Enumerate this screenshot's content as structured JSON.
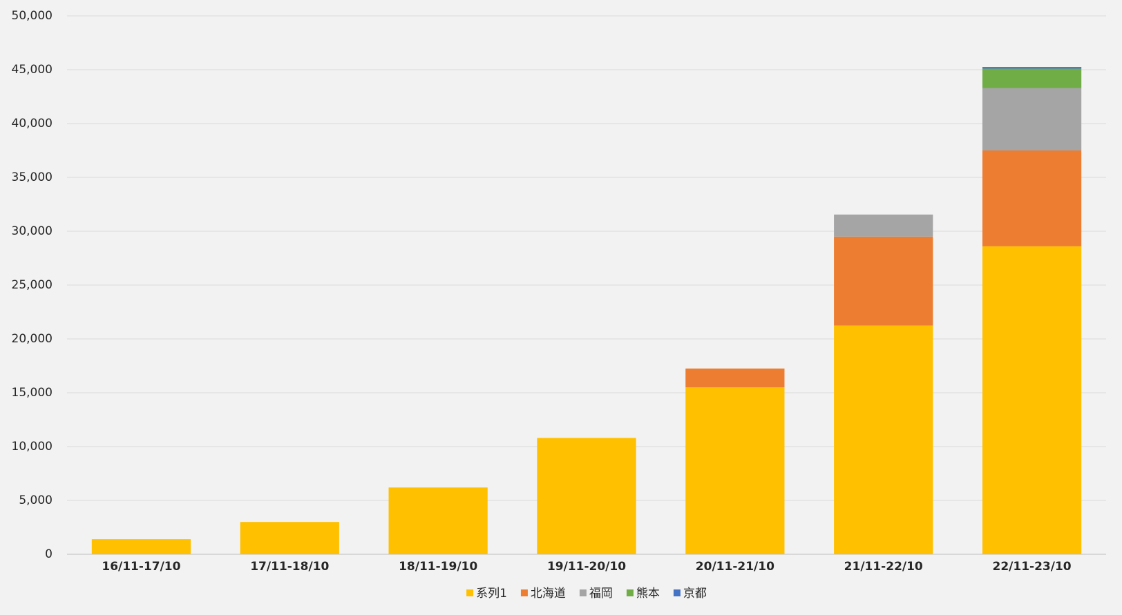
{
  "chart_data": {
    "type": "stacked-bar",
    "categories": [
      "16/11-17/10",
      "17/11-18/10",
      "18/11-19/10",
      "19/11-20/10",
      "20/11-21/10",
      "21/11-22/10",
      "22/11-23/10"
    ],
    "series": [
      {
        "name": "系列1",
        "color": "#ffc000",
        "values": [
          1400,
          3000,
          6200,
          10800,
          15500,
          21250,
          28600
        ]
      },
      {
        "name": "北海道",
        "color": "#ed7d31",
        "values": [
          null,
          null,
          null,
          null,
          1750,
          8250,
          8900
        ]
      },
      {
        "name": "福岡",
        "color": "#a5a5a5",
        "values": [
          null,
          null,
          null,
          null,
          null,
          2050,
          5800
        ]
      },
      {
        "name": "熊本",
        "color": "#70ad47",
        "values": [
          null,
          null,
          null,
          null,
          null,
          null,
          1800
        ]
      },
      {
        "name": "京都",
        "color": "#4472c4",
        "values": [
          null,
          null,
          null,
          null,
          null,
          null,
          150
        ]
      }
    ],
    "ylim": [
      0,
      50000
    ],
    "yticks": [
      0,
      {
        "value": 5000,
        "label": "5,000"
      },
      {
        "value": 10000,
        "label": "10,000"
      },
      {
        "value": 15000,
        "label": "15,000"
      },
      {
        "value": 20000,
        "label": "20,000"
      },
      {
        "value": 25000,
        "label": "25,000"
      },
      {
        "value": 30000,
        "label": "30,000"
      },
      {
        "value": 35000,
        "label": "35,000"
      },
      {
        "value": 40000,
        "label": "40,000"
      },
      {
        "value": 45000,
        "label": "45,000"
      },
      {
        "value": 50000,
        "label": "50,000"
      }
    ],
    "grid": true,
    "legend": "bottom"
  }
}
